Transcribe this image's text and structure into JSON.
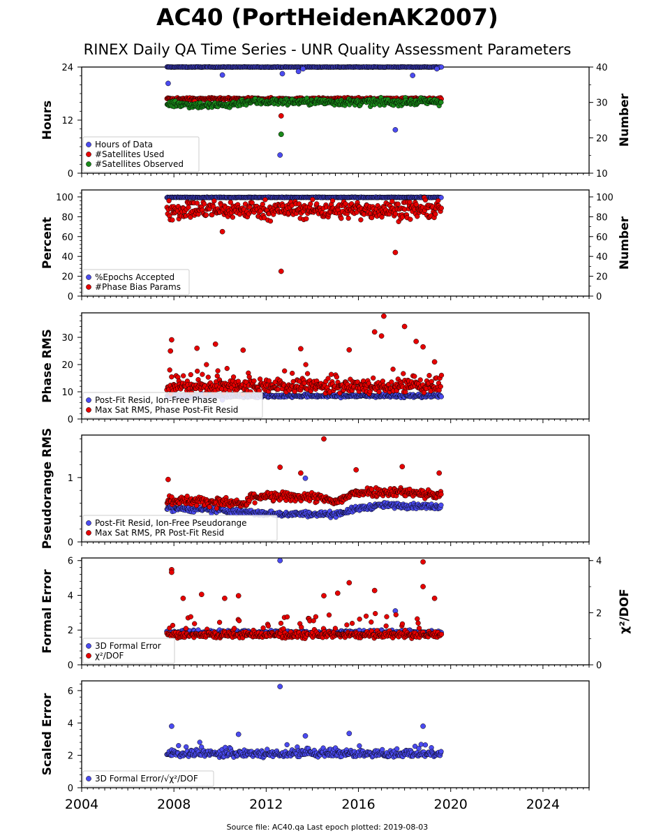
{
  "title": "AC40 (PortHeidenAK2007)",
  "subtitle": "RINEX Daily QA Time Series - UNR Quality Assessment Parameters",
  "footer": "Source file: AC40.qa Last epoch plotted: 2019-08-03",
  "colors": {
    "blue": "#4b4bf0",
    "red": "#e60000",
    "green": "#1a8a1a",
    "edge": "#000000"
  },
  "chart_data": [
    {
      "type": "scatter",
      "ylabel": "Hours",
      "ylabel_right": "Number",
      "xlim": [
        2004,
        2026
      ],
      "ylim": [
        0,
        24
      ],
      "ylim_right": [
        10,
        40
      ],
      "xticks": [
        "2004",
        "2008",
        "2012",
        "2016",
        "2020",
        "2024"
      ],
      "yticks": [
        "0",
        "12",
        "24"
      ],
      "yticks_right": [
        "10",
        "20",
        "30",
        "40"
      ],
      "legend_position": "lower-left",
      "series": [
        {
          "name": "Hours of Data",
          "color": "blue",
          "axis": "left",
          "start": 2007.7,
          "end": 2019.59,
          "base": 24,
          "noise": 0.05,
          "outliers": [
            [
              2007.75,
              20.3
            ],
            [
              2010.1,
              22.2
            ],
            [
              2012.7,
              22.5
            ],
            [
              2012.6,
              4.1
            ],
            [
              2013.4,
              23.0
            ],
            [
              2013.6,
              23.6
            ],
            [
              2017.6,
              9.8
            ],
            [
              2018.35,
              22.1
            ],
            [
              2019.4,
              23.6
            ]
          ]
        },
        {
          "name": "#Satellites Used",
          "color": "red",
          "axis": "right",
          "start": 2007.7,
          "end": 2019.59,
          "base": 31,
          "noise": 0.3,
          "outliers": [
            [
              2008.9,
              30.3
            ],
            [
              2012.65,
              26.2
            ],
            [
              2012.65,
              21.0
            ]
          ]
        },
        {
          "name": "#Satellites Observed",
          "color": "green",
          "axis": "right",
          "start": 2007.7,
          "end": 2019.59,
          "base": 30.0,
          "noise": 0.9,
          "trend": [
            [
              2008,
              29.6
            ],
            [
              2009.5,
              29.1
            ],
            [
              2010.5,
              29.3
            ],
            [
              2011.0,
              30.2
            ],
            [
              2013.5,
              30.2
            ],
            [
              2016,
              30.0
            ],
            [
              2019.5,
              30.2
            ]
          ],
          "outliers": [
            [
              2012.65,
              21.0
            ]
          ]
        }
      ]
    },
    {
      "type": "scatter",
      "ylabel": "Percent",
      "ylabel_right": "Number",
      "xlim": [
        2004,
        2026
      ],
      "ylim": [
        0,
        107
      ],
      "ylim_right": [
        0,
        107
      ],
      "xticks": [
        "2004",
        "2008",
        "2012",
        "2016",
        "2020",
        "2024"
      ],
      "yticks": [
        "0",
        "20",
        "40",
        "60",
        "80",
        "100"
      ],
      "yticks_right": [
        "0",
        "20",
        "40",
        "60",
        "80",
        "100"
      ],
      "legend_position": "lower-left",
      "series": [
        {
          "name": "%Epochs Accepted",
          "color": "blue",
          "axis": "left",
          "start": 2007.7,
          "end": 2019.59,
          "base": 99.5,
          "noise": 0.3,
          "outliers": []
        },
        {
          "name": "#Phase Bias Params",
          "color": "red",
          "axis": "right",
          "start": 2007.7,
          "end": 2019.59,
          "base": 87,
          "noise": 9,
          "outliers": [
            [
              2012.65,
              25
            ],
            [
              2017.6,
              44
            ],
            [
              2010.1,
              65
            ]
          ]
        }
      ]
    },
    {
      "type": "scatter",
      "ylabel": "Phase RMS",
      "xlim": [
        2004,
        2026
      ],
      "ylim": [
        0,
        39
      ],
      "xticks": [
        "2004",
        "2008",
        "2012",
        "2016",
        "2020",
        "2024"
      ],
      "yticks": [
        "0",
        "10",
        "20",
        "30"
      ],
      "legend_position": "lower-left",
      "series": [
        {
          "name": "Post-Fit Resid, Ion-Free Phase",
          "color": "blue",
          "axis": "left",
          "start": 2007.7,
          "end": 2019.59,
          "base": 8.5,
          "noise": 0.6,
          "outliers": [
            [
              2010.1,
              7.0
            ]
          ]
        },
        {
          "name": "Max Sat RMS, Phase Post-Fit Resid",
          "color": "red",
          "axis": "left",
          "start": 2007.7,
          "end": 2019.59,
          "base": 12,
          "noise": 2.5,
          "skew": 9,
          "outliers": [
            [
              2007.9,
              29.1
            ],
            [
              2007.85,
              25.0
            ],
            [
              2009.0,
              26.0
            ],
            [
              2009.8,
              27.5
            ],
            [
              2011.0,
              25.3
            ],
            [
              2013.5,
              25.8
            ],
            [
              2015.6,
              25.4
            ],
            [
              2016.7,
              32.0
            ],
            [
              2017.1,
              37.8
            ],
            [
              2017.0,
              30.5
            ],
            [
              2018.0,
              34.0
            ],
            [
              2018.5,
              28.5
            ],
            [
              2018.8,
              26.5
            ],
            [
              2019.3,
              21.0
            ]
          ]
        }
      ]
    },
    {
      "type": "scatter",
      "ylabel": "Pseudorange RMS",
      "xlim": [
        2004,
        2026
      ],
      "ylim": [
        0,
        1.66
      ],
      "xticks": [
        "2004",
        "2008",
        "2012",
        "2016",
        "2020",
        "2024"
      ],
      "yticks": [
        "0",
        "1"
      ],
      "legend_position": "lower-left",
      "series": [
        {
          "name": "Post-Fit Resid, Ion-Free Pseudorange",
          "color": "blue",
          "axis": "left",
          "start": 2007.7,
          "end": 2019.59,
          "base": 0.5,
          "noise": 0.04,
          "trend": [
            [
              2008,
              0.52
            ],
            [
              2010,
              0.49
            ],
            [
              2012,
              0.44
            ],
            [
              2015,
              0.43
            ],
            [
              2016,
              0.52
            ],
            [
              2017,
              0.57
            ],
            [
              2019.5,
              0.55
            ]
          ],
          "outliers": [
            [
              2013.7,
              0.99
            ]
          ]
        },
        {
          "name": "Max Sat RMS, PR Post-Fit Resid",
          "color": "red",
          "axis": "left",
          "start": 2007.7,
          "end": 2019.59,
          "base": 0.66,
          "noise": 0.07,
          "trend": [
            [
              2008,
              0.65
            ],
            [
              2010,
              0.62
            ],
            [
              2011.2,
              0.58
            ],
            [
              2011.3,
              0.7
            ],
            [
              2014,
              0.7
            ],
            [
              2015,
              0.62
            ],
            [
              2016,
              0.78
            ],
            [
              2018,
              0.78
            ],
            [
              2019.5,
              0.72
            ]
          ],
          "outliers": [
            [
              2007.75,
              0.97
            ],
            [
              2012.6,
              1.16
            ],
            [
              2013.5,
              1.07
            ],
            [
              2014.5,
              1.6
            ],
            [
              2015.9,
              1.12
            ],
            [
              2017.9,
              1.17
            ],
            [
              2019.5,
              1.07
            ]
          ]
        }
      ]
    },
    {
      "type": "scatter",
      "ylabel": "Formal Error",
      "ylabel_right": "χ²/DOF",
      "xlim": [
        2004,
        2026
      ],
      "ylim": [
        0,
        6.15
      ],
      "ylim_right": [
        0,
        4.1
      ],
      "xticks": [
        "2004",
        "2008",
        "2012",
        "2016",
        "2020",
        "2024"
      ],
      "yticks": [
        "0",
        "2",
        "4",
        "6"
      ],
      "yticks_right": [
        "0",
        "2",
        "4"
      ],
      "legend_position": "lower-left",
      "series": [
        {
          "name": "3D Formal Error",
          "color": "blue",
          "axis": "left",
          "start": 2007.7,
          "end": 2019.59,
          "base": 1.85,
          "noise": 0.15,
          "outliers": [
            [
              2012.6,
              6.0
            ],
            [
              2017.6,
              3.1
            ]
          ]
        },
        {
          "name": "χ²/DOF",
          "color": "red",
          "axis": "right",
          "start": 2007.7,
          "end": 2019.59,
          "base": 1.15,
          "noise": 0.12,
          "skew": 1.2,
          "outliers": [
            [
              2007.9,
              3.65
            ],
            [
              2007.9,
              3.55
            ],
            [
              2008.4,
              2.55
            ],
            [
              2009.2,
              2.7
            ],
            [
              2010.2,
              2.55
            ],
            [
              2010.8,
              2.65
            ],
            [
              2014.5,
              2.65
            ],
            [
              2015.1,
              2.75
            ],
            [
              2015.6,
              3.15
            ],
            [
              2016.7,
              2.85
            ],
            [
              2018.8,
              3.95
            ],
            [
              2018.8,
              3.0
            ],
            [
              2019.3,
              2.55
            ]
          ]
        }
      ]
    },
    {
      "type": "scatter",
      "ylabel": "Scaled Error",
      "xlabel": "",
      "xlim": [
        2004,
        2026
      ],
      "ylim": [
        0,
        6.6
      ],
      "xticks": [
        "2004",
        "2008",
        "2012",
        "2016",
        "2020",
        "2024"
      ],
      "yticks": [
        "0",
        "2",
        "4",
        "6"
      ],
      "legend_position": "lower-left",
      "series": [
        {
          "name": "3D Formal Error/√χ²/DOF",
          "color": "blue",
          "axis": "left",
          "start": 2007.7,
          "end": 2019.59,
          "base": 2.1,
          "noise": 0.22,
          "skew": 0.8,
          "outliers": [
            [
              2007.9,
              3.8
            ],
            [
              2012.6,
              6.25
            ],
            [
              2018.8,
              3.8
            ],
            [
              2010.8,
              3.3
            ],
            [
              2013.7,
              3.2
            ],
            [
              2015.6,
              3.35
            ]
          ]
        }
      ]
    }
  ]
}
